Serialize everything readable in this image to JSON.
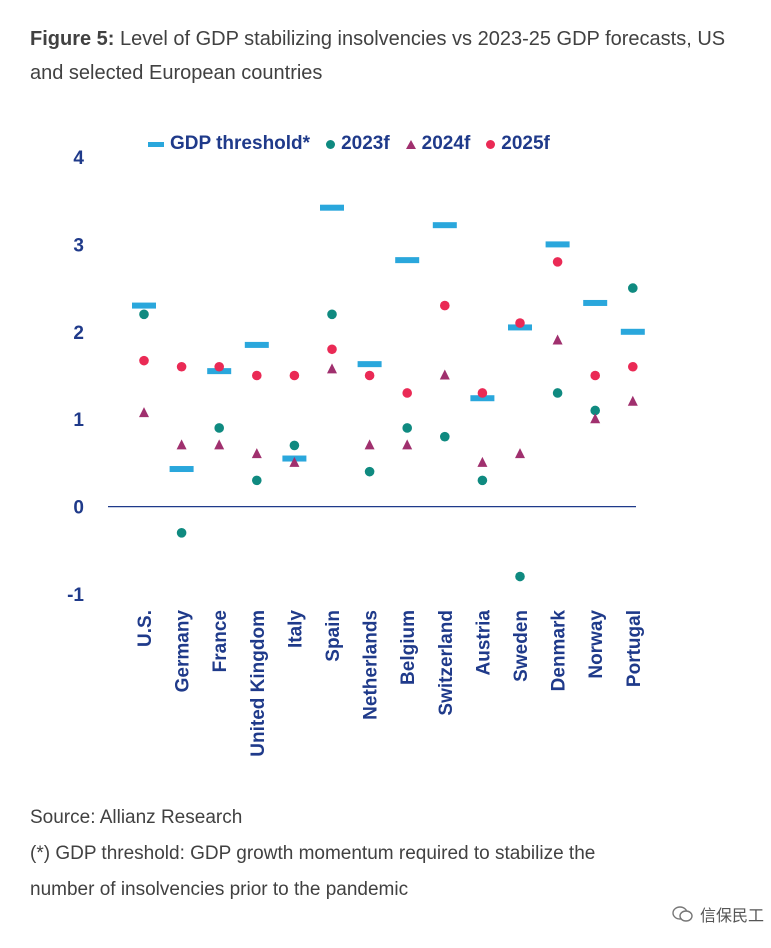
{
  "title": {
    "bold": "Figure 5:",
    "text": " Level of GDP stabilizing insolvencies vs 2023-25 GDP forecasts, US and selected European countries"
  },
  "colors": {
    "threshold": "#2aa7dc",
    "f2023": "#0f8a80",
    "f2024": "#a0306e",
    "f2025": "#ea2a55",
    "axis_text": "#1f3a8a"
  },
  "chart_data": {
    "type": "scatter",
    "categories": [
      "U.S.",
      "Germany",
      "France",
      "United Kingdom",
      "Italy",
      "Spain",
      "Netherlands",
      "Belgium",
      "Switzerland",
      "Austria",
      "Sweden",
      "Denmark",
      "Norway",
      "Portugal"
    ],
    "ylim": [
      -1,
      4
    ],
    "yticks": [
      "-1",
      "0",
      "1",
      "2",
      "3",
      "4"
    ],
    "series": [
      {
        "name": "GDP threshold*",
        "marker": "dash",
        "values": [
          2.3,
          0.43,
          1.55,
          1.85,
          0.55,
          3.42,
          1.63,
          2.82,
          3.22,
          1.24,
          2.05,
          3.0,
          2.33,
          2.0
        ]
      },
      {
        "name": "2023f",
        "marker": "circle",
        "values": [
          2.2,
          -0.3,
          0.9,
          0.3,
          0.7,
          2.2,
          0.4,
          0.9,
          0.8,
          0.3,
          -0.8,
          1.3,
          1.1,
          2.5
        ]
      },
      {
        "name": "2024f",
        "marker": "triangle",
        "values": [
          1.07,
          0.7,
          0.7,
          0.6,
          0.5,
          1.57,
          0.7,
          0.7,
          1.5,
          0.5,
          0.6,
          1.9,
          1.0,
          1.2
        ]
      },
      {
        "name": "2025f",
        "marker": "circle",
        "values": [
          1.67,
          1.6,
          1.6,
          1.5,
          1.5,
          1.8,
          1.5,
          1.3,
          2.3,
          1.3,
          2.1,
          2.8,
          1.5,
          1.6
        ]
      }
    ]
  },
  "source": "Source: Allianz Research",
  "footnote_line1": "(*) GDP threshold: GDP growth momentum required to stabilize the",
  "footnote_line2": "number of insolvencies prior to the pandemic",
  "watermark": "信保民工"
}
